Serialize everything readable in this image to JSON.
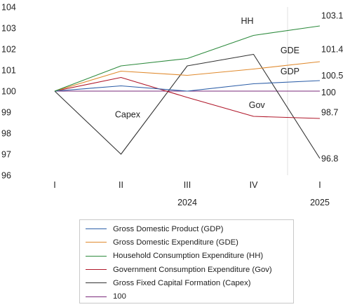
{
  "chart_data": {
    "type": "line",
    "categories": [
      "I",
      "II",
      "III",
      "IV",
      "I"
    ],
    "year_labels": [
      {
        "text": "2024",
        "category_index": 2
      },
      {
        "text": "2025",
        "category_index": 4
      }
    ],
    "y_ticks": [
      96,
      97,
      98,
      99,
      100,
      101,
      102,
      103,
      104
    ],
    "ylim": [
      96,
      104
    ],
    "grid": "none",
    "legend_position": "bottom",
    "series": [
      {
        "key": "gdp",
        "name": "Gross Domestic Product (GDP)",
        "color": "#2E5FA8",
        "values": [
          100,
          100.25,
          100.0,
          100.35,
          100.5
        ]
      },
      {
        "key": "gde",
        "name": "Gross Domestic Expenditure (GDE)",
        "color": "#E08A2E",
        "values": [
          100,
          100.95,
          100.75,
          101.05,
          101.4
        ]
      },
      {
        "key": "hh",
        "name": "Household Consumption Expenditure (HH)",
        "color": "#2E8B3E",
        "values": [
          100,
          101.2,
          101.55,
          102.65,
          103.1
        ]
      },
      {
        "key": "gov",
        "name": "Government Consumption Expenditure (Gov)",
        "color": "#B0182B",
        "values": [
          100,
          100.65,
          99.7,
          98.8,
          98.7
        ]
      },
      {
        "key": "capex",
        "name": "Gross Fixed Capital Formation (Capex)",
        "color": "#333333",
        "values": [
          100,
          97.0,
          101.2,
          101.75,
          96.8
        ]
      },
      {
        "key": "base",
        "name": "100",
        "color": "#7A2A7A",
        "values": [
          100,
          100,
          100,
          100,
          100
        ]
      }
    ],
    "annotations": [
      {
        "text": "HH",
        "x_index": 3,
        "y": 103.2,
        "anchor": "end"
      },
      {
        "text": "GDE",
        "x_index": 3.55,
        "y": 101.8,
        "anchor": "middle"
      },
      {
        "text": "GDP",
        "x_index": 3.55,
        "y": 100.8,
        "anchor": "middle"
      },
      {
        "text": "Gov",
        "x_index": 3.05,
        "y": 99.2,
        "anchor": "middle"
      },
      {
        "text": "Capex",
        "x_index": 1.1,
        "y": 98.75,
        "anchor": "middle"
      }
    ],
    "end_labels": [
      {
        "text": "103.1",
        "y": 103.6
      },
      {
        "text": "101.4",
        "y": 102.0
      },
      {
        "text": "100.5",
        "y": 100.75
      },
      {
        "text": "100",
        "y": 99.95
      },
      {
        "text": "98.7",
        "y": 99.0
      },
      {
        "text": "96.8",
        "y": 96.8
      }
    ]
  }
}
